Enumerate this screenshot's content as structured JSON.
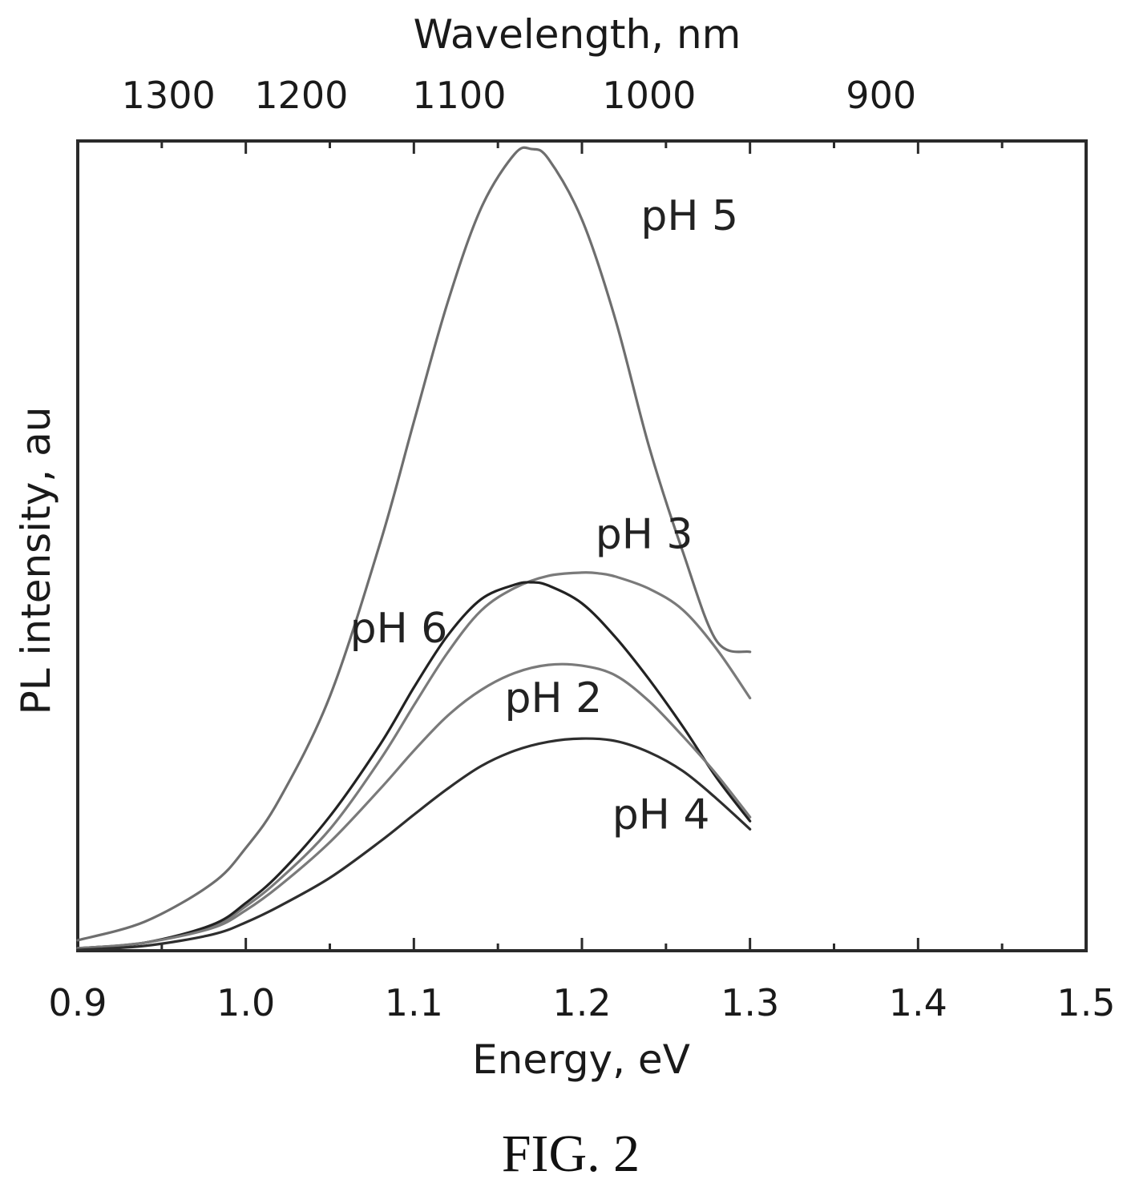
{
  "figure": {
    "caption": "FIG. 2"
  },
  "chart_data": {
    "type": "line",
    "xlabel": "Energy, eV",
    "ylabel": "PL intensity, au",
    "x2label": "Wavelength, nm",
    "xlim": [
      0.9,
      1.5
    ],
    "ylim": [
      0,
      1.0
    ],
    "x_ticks": [
      "0.9",
      "1.0",
      "1.1",
      "1.2",
      "1.3",
      "1.4",
      "1.5"
    ],
    "x2_ticks": [
      {
        "label": "1300",
        "energy": 0.954
      },
      {
        "label": "1200",
        "energy": 1.033
      },
      {
        "label": "1100",
        "energy": 1.127
      },
      {
        "label": "1000",
        "energy": 1.24
      },
      {
        "label": "900",
        "energy": 1.378
      }
    ],
    "y_ticks_labeled": false,
    "grid": false,
    "legend": "none",
    "series": [
      {
        "name": "pH 5",
        "color": "#6e6e6e",
        "x": [
          0.9,
          0.94,
          0.98,
          1.0,
          1.02,
          1.05,
          1.08,
          1.1,
          1.12,
          1.14,
          1.16,
          1.17,
          1.18,
          1.2,
          1.22,
          1.24,
          1.26,
          1.28,
          1.3
        ],
        "y": [
          0.013,
          0.036,
          0.083,
          0.127,
          0.187,
          0.314,
          0.504,
          0.653,
          0.8,
          0.917,
          0.984,
          0.99,
          0.978,
          0.903,
          0.779,
          0.622,
          0.493,
          0.383,
          0.369
        ]
      },
      {
        "name": "pH 3",
        "color": "#7a7a7a",
        "x": [
          0.9,
          0.94,
          0.98,
          1.0,
          1.02,
          1.05,
          1.08,
          1.1,
          1.12,
          1.14,
          1.16,
          1.18,
          1.2,
          1.21,
          1.22,
          1.24,
          1.26,
          1.28,
          1.3
        ],
        "y": [
          0.003,
          0.01,
          0.03,
          0.055,
          0.088,
          0.15,
          0.236,
          0.303,
          0.368,
          0.42,
          0.448,
          0.463,
          0.467,
          0.466,
          0.462,
          0.447,
          0.421,
          0.373,
          0.312
        ]
      },
      {
        "name": "pH 6",
        "color": "#222222",
        "x": [
          0.9,
          0.94,
          0.98,
          1.0,
          1.02,
          1.05,
          1.08,
          1.1,
          1.12,
          1.14,
          1.16,
          1.17,
          1.18,
          1.2,
          1.22,
          1.24,
          1.26,
          1.28,
          1.3
        ],
        "y": [
          0.003,
          0.01,
          0.032,
          0.059,
          0.095,
          0.166,
          0.255,
          0.325,
          0.389,
          0.434,
          0.452,
          0.455,
          0.451,
          0.429,
          0.387,
          0.335,
          0.277,
          0.214,
          0.16
        ]
      },
      {
        "name": "pH 2",
        "color": "#7a7a7a",
        "x": [
          0.9,
          0.94,
          0.98,
          1.0,
          1.02,
          1.05,
          1.08,
          1.1,
          1.12,
          1.14,
          1.16,
          1.18,
          1.2,
          1.22,
          1.24,
          1.26,
          1.28,
          1.3
        ],
        "y": [
          0.003,
          0.01,
          0.028,
          0.05,
          0.08,
          0.134,
          0.2,
          0.247,
          0.29,
          0.322,
          0.343,
          0.353,
          0.352,
          0.34,
          0.308,
          0.265,
          0.218,
          0.165
        ]
      },
      {
        "name": "pH 4",
        "color": "#2e2e2e",
        "x": [
          0.9,
          0.94,
          0.98,
          1.0,
          1.02,
          1.05,
          1.08,
          1.1,
          1.12,
          1.14,
          1.16,
          1.18,
          1.2,
          1.22,
          1.24,
          1.26,
          1.28,
          1.3
        ],
        "y": [
          0.001,
          0.006,
          0.02,
          0.035,
          0.055,
          0.09,
          0.135,
          0.168,
          0.2,
          0.228,
          0.247,
          0.258,
          0.262,
          0.259,
          0.245,
          0.222,
          0.188,
          0.15
        ]
      }
    ],
    "annotations": [
      {
        "text": "pH 5",
        "x": 1.235,
        "y": 0.89
      },
      {
        "text": "pH 3",
        "x": 1.208,
        "y": 0.497
      },
      {
        "text": "pH 6",
        "x": 1.062,
        "y": 0.381
      },
      {
        "text": "pH 2",
        "x": 1.154,
        "y": 0.295
      },
      {
        "text": "pH 4",
        "x": 1.218,
        "y": 0.151
      }
    ]
  }
}
